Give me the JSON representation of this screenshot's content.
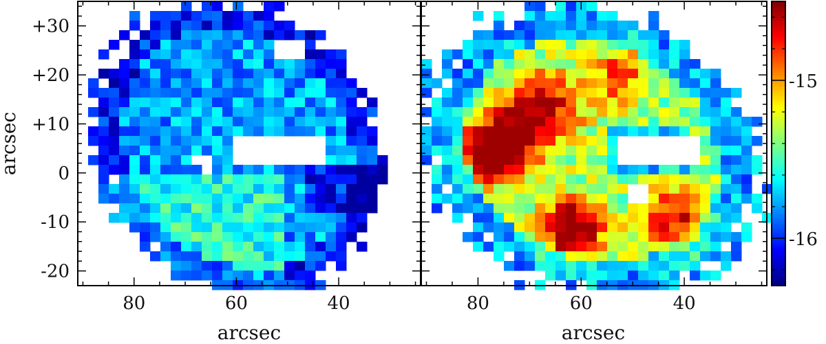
{
  "chart_data": {
    "type": "heatmap",
    "panels": [
      {
        "xlabel": "arcsec",
        "ylabel": "arcsec",
        "xlim": [
          91,
          24
        ],
        "ylim": [
          -23,
          35
        ],
        "xticks": [
          80,
          60,
          40
        ],
        "yticks": [
          30,
          20,
          10,
          0,
          -10,
          -20
        ],
        "ytick_labels": [
          "+30",
          "+20",
          "+10",
          "0",
          "-10",
          "-20"
        ],
        "color_range": [
          -16.2,
          -15.1
        ]
      },
      {
        "xlabel": "arcsec",
        "xlim": [
          91,
          24
        ],
        "ylim": [
          -23,
          35
        ],
        "xticks": [
          80,
          60,
          40
        ],
        "color_range": [
          -16.2,
          -14.8
        ]
      }
    ],
    "colorbar": {
      "ticks": [
        -15,
        -16
      ],
      "tick_labels": [
        "-15",
        "-16"
      ],
      "range": [
        -16.3,
        -14.5
      ],
      "colormap": "jet"
    }
  }
}
